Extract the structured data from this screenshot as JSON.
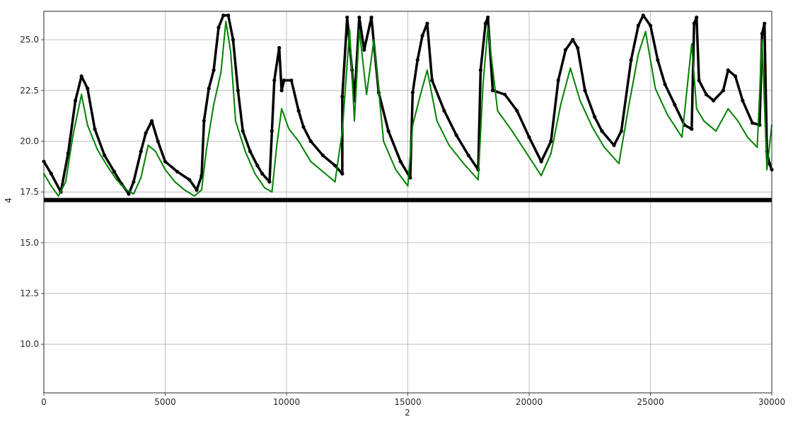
{
  "chart_data": {
    "type": "scatter",
    "title": "",
    "xlabel": "2",
    "ylabel": "4",
    "xlim": [
      0,
      30000
    ],
    "ylim": [
      7.6,
      26.4
    ],
    "grid": true,
    "x_ticks": [
      0,
      5000,
      10000,
      15000,
      20000,
      25000,
      30000
    ],
    "x_tick_labels": [
      "0",
      "5000",
      "10000",
      "15000",
      "20000",
      "25000",
      "30000"
    ],
    "y_ticks": [
      10.0,
      12.5,
      15.0,
      17.5,
      20.0,
      22.5,
      25.0
    ],
    "y_tick_labels": [
      "10.0",
      "12.5",
      "15.0",
      "17.5",
      "20.0",
      "22.5",
      "25.0"
    ],
    "baseline": {
      "y": 17.1,
      "x_range": [
        0,
        30000
      ],
      "color": "#000000"
    },
    "colors": {
      "upper_series": "#000000",
      "lower_series": "#008000"
    },
    "series": [
      {
        "style": "markers",
        "color": "#000000",
        "x": [
          0,
          300,
          700,
          1000,
          1300,
          1550,
          1800,
          2100,
          2500,
          2900,
          3200,
          3500,
          3700,
          4000,
          4200,
          4450,
          4700,
          5000,
          5500,
          6000,
          6300,
          6500,
          6600,
          6800,
          7000,
          7200,
          7400,
          7600,
          7800,
          8000,
          8200,
          8500,
          8800,
          9000,
          9300,
          9400,
          9500,
          9700,
          9800,
          9900,
          10200,
          10500,
          10700,
          11000,
          11500,
          12000,
          12300,
          12300,
          12500,
          12700,
          12800,
          13000,
          13200,
          13500,
          13800,
          14200,
          14700,
          15100,
          15200,
          15400,
          15600,
          15800,
          16000,
          16500,
          17000,
          17500,
          17900,
          18000,
          18200,
          18300,
          18500,
          19000,
          19500,
          20000,
          20500,
          20900,
          21200,
          21500,
          21800,
          22000,
          22300,
          22700,
          23000,
          23500,
          23800,
          24200,
          24500,
          24700,
          25000,
          25300,
          25600,
          26000,
          26400,
          26700,
          26800,
          26900,
          27000,
          27300,
          27600,
          28000,
          28200,
          28500,
          28800,
          29200,
          29500,
          29600,
          29700,
          29800,
          29900,
          30000
        ],
        "y": [
          19.0,
          18.4,
          17.5,
          19.4,
          22.0,
          23.2,
          22.6,
          20.6,
          19.3,
          18.5,
          17.9,
          17.4,
          18.0,
          19.5,
          20.4,
          21.0,
          20.0,
          19.0,
          18.5,
          18.1,
          17.6,
          18.3,
          21.0,
          22.6,
          23.5,
          25.6,
          26.2,
          26.2,
          25.0,
          22.5,
          20.5,
          19.5,
          18.8,
          18.4,
          18.0,
          20.5,
          23.0,
          24.6,
          22.5,
          23.0,
          23.0,
          21.5,
          20.7,
          20.0,
          19.3,
          18.8,
          18.4,
          22.2,
          26.1,
          23.5,
          22.0,
          26.1,
          24.5,
          26.1,
          22.4,
          20.5,
          19.0,
          18.2,
          22.4,
          24.0,
          25.2,
          25.8,
          23.0,
          21.5,
          20.3,
          19.3,
          18.6,
          23.5,
          25.8,
          26.1,
          22.5,
          22.3,
          21.5,
          20.2,
          19.0,
          20.0,
          23.0,
          24.5,
          25.0,
          24.6,
          22.5,
          21.2,
          20.5,
          19.8,
          20.5,
          24.0,
          25.7,
          26.2,
          25.7,
          24.0,
          22.8,
          21.8,
          20.8,
          20.6,
          25.8,
          26.1,
          23.0,
          22.3,
          22.0,
          22.5,
          23.5,
          23.2,
          22.0,
          20.9,
          20.8,
          25.3,
          25.8,
          19.5,
          18.9,
          18.6
        ]
      },
      {
        "style": "line",
        "color": "#008000",
        "x": [
          0,
          300,
          600,
          900,
          1200,
          1550,
          1800,
          2200,
          2600,
          3000,
          3400,
          3700,
          4000,
          4300,
          4600,
          5000,
          5400,
          5800,
          6200,
          6500,
          6700,
          7000,
          7300,
          7500,
          7700,
          7900,
          8300,
          8700,
          9100,
          9400,
          9600,
          9800,
          10100,
          10500,
          11000,
          11500,
          12000,
          12300,
          12600,
          12800,
          13000,
          13300,
          13600,
          14000,
          14500,
          15000,
          15200,
          15500,
          15800,
          16200,
          16700,
          17300,
          17900,
          18100,
          18300,
          18700,
          19300,
          19900,
          20500,
          20900,
          21300,
          21700,
          22100,
          22600,
          23100,
          23700,
          24100,
          24500,
          24800,
          25200,
          25700,
          26300,
          26700,
          26900,
          27200,
          27700,
          28200,
          28600,
          29000,
          29400,
          29600,
          29800,
          30000
        ],
        "y": [
          18.4,
          17.8,
          17.3,
          18.0,
          20.3,
          22.3,
          20.8,
          19.6,
          18.8,
          18.1,
          17.6,
          17.4,
          18.2,
          19.8,
          19.5,
          18.6,
          18.0,
          17.6,
          17.3,
          17.6,
          19.6,
          21.8,
          23.4,
          25.9,
          24.4,
          21.0,
          19.5,
          18.4,
          17.7,
          17.5,
          19.8,
          21.6,
          20.6,
          20.0,
          19.0,
          18.5,
          18.0,
          20.5,
          25.5,
          21.0,
          25.5,
          22.3,
          25.0,
          20.0,
          18.6,
          17.8,
          20.8,
          22.2,
          23.5,
          21.0,
          19.8,
          18.9,
          18.1,
          22.8,
          25.6,
          21.5,
          20.5,
          19.4,
          18.3,
          19.4,
          21.8,
          23.6,
          22.0,
          20.7,
          19.7,
          18.9,
          21.7,
          24.3,
          25.4,
          22.6,
          21.3,
          20.2,
          24.8,
          21.6,
          21.0,
          20.5,
          21.6,
          21.0,
          20.2,
          19.7,
          25.0,
          18.6,
          20.8
        ]
      }
    ]
  }
}
